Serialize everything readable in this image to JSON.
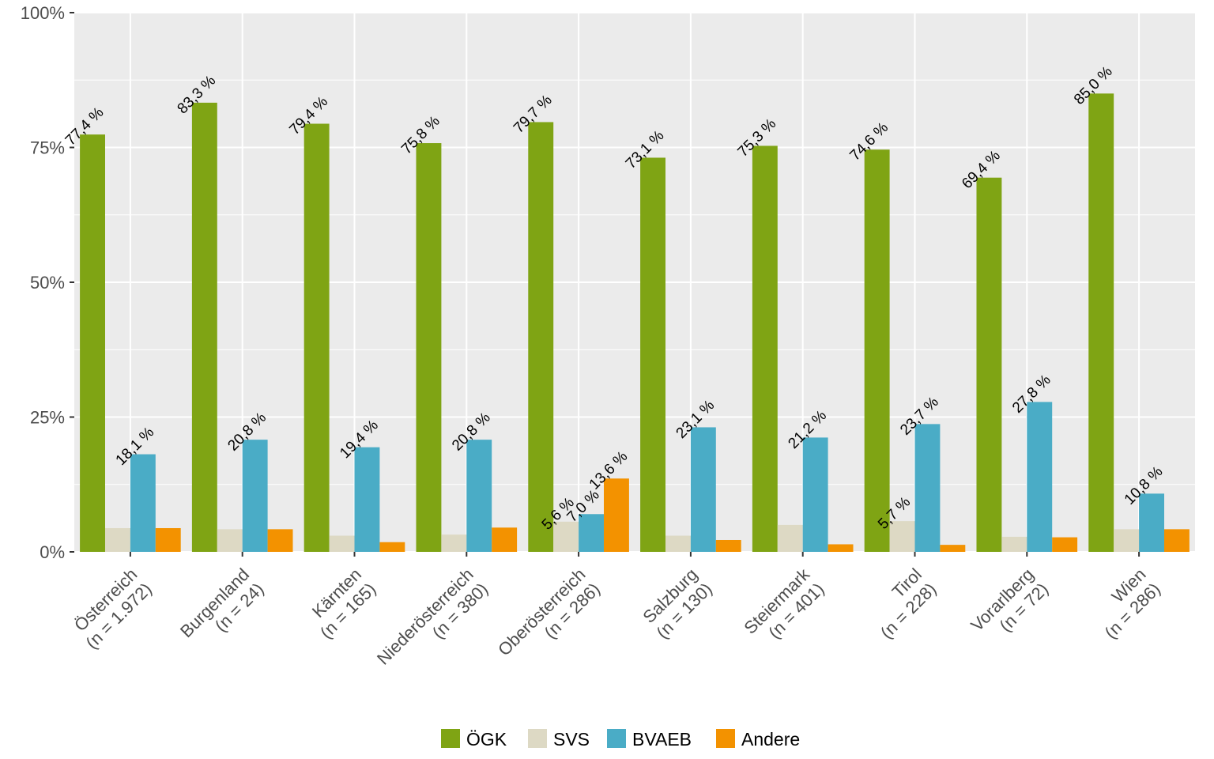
{
  "chart_data": {
    "type": "bar",
    "categories": [
      {
        "name": "Österreich",
        "n": "(n = 1.972)"
      },
      {
        "name": "Burgenland",
        "n": "(n = 24)"
      },
      {
        "name": "Kärnten",
        "n": "(n = 165)"
      },
      {
        "name": "Niederösterreich",
        "n": "(n = 380)"
      },
      {
        "name": "Oberösterreich",
        "n": "(n = 286)"
      },
      {
        "name": "Salzburg",
        "n": "(n = 130)"
      },
      {
        "name": "Steiermark",
        "n": "(n = 401)"
      },
      {
        "name": "Tirol",
        "n": "(n = 228)"
      },
      {
        "name": "Vorarlberg",
        "n": "(n = 72)"
      },
      {
        "name": "Wien",
        "n": "(n = 286)"
      }
    ],
    "series": [
      {
        "name": "ÖGK",
        "color": "#7fa414",
        "values": [
          77.4,
          83.3,
          79.4,
          75.8,
          79.7,
          73.1,
          75.3,
          74.6,
          69.4,
          85.0
        ],
        "labels": [
          "77,4 %",
          "83,3 %",
          "79,4 %",
          "75,8 %",
          "79,7 %",
          "73,1 %",
          "75,3 %",
          "74,6 %",
          "69,4 %",
          "85,0 %"
        ]
      },
      {
        "name": "SVS",
        "color": "#ddd9c4",
        "values": [
          4.4,
          4.2,
          3.0,
          3.2,
          5.6,
          3.0,
          5.0,
          5.7,
          2.8,
          4.2
        ],
        "labels": [
          null,
          null,
          null,
          null,
          "5,6 %",
          null,
          null,
          "5,7 %",
          null,
          null
        ]
      },
      {
        "name": "BVAEB",
        "color": "#4aacc6",
        "values": [
          18.1,
          20.8,
          19.4,
          20.8,
          7.0,
          23.1,
          21.2,
          23.7,
          27.8,
          10.8
        ],
        "labels": [
          "18,1 %",
          "20,8 %",
          "19,4 %",
          "20,8 %",
          "7,0 %",
          "23,1 %",
          "21,2 %",
          "23,7 %",
          "27,8 %",
          "10,8 %"
        ]
      },
      {
        "name": "Andere",
        "color": "#f39200",
        "values": [
          4.4,
          4.2,
          1.8,
          4.5,
          13.6,
          2.2,
          1.4,
          1.3,
          2.7,
          4.2
        ],
        "labels": [
          null,
          null,
          null,
          null,
          "13,6 %",
          null,
          null,
          null,
          null,
          null
        ]
      }
    ],
    "y_ticks": [
      "0%",
      "25%",
      "50%",
      "75%",
      "100%"
    ],
    "ylim": [
      0,
      100
    ],
    "xlabel": "",
    "ylabel": "",
    "grid": true,
    "legend_position": "bottom"
  }
}
